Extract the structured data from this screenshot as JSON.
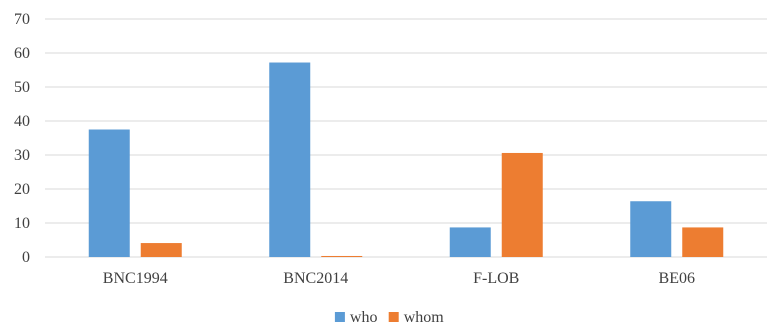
{
  "chart_data": {
    "type": "bar",
    "categories": [
      "BNC1994",
      "BNC2014",
      "F-LOB",
      "BE06"
    ],
    "series": [
      {
        "name": "who",
        "values": [
          37.5,
          57.2,
          8.7,
          16.4
        ],
        "color": "#5b9bd5"
      },
      {
        "name": "whom",
        "values": [
          4.1,
          0.3,
          30.6,
          8.7
        ],
        "color": "#ed7d31"
      }
    ],
    "ylim": [
      0,
      70
    ],
    "yticks": [
      0,
      10,
      20,
      30,
      40,
      50,
      60,
      70
    ],
    "grid": true,
    "legend_position": "bottom",
    "gridline_color": "#d9d9d9",
    "text_color": "#404040"
  }
}
